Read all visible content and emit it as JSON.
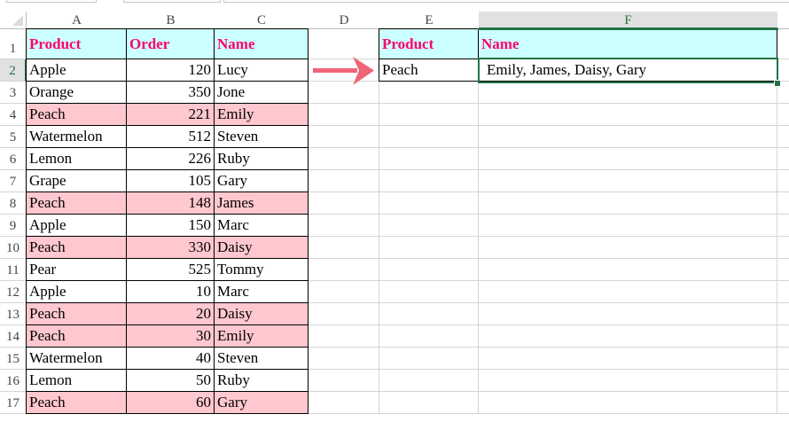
{
  "columns": [
    "A",
    "B",
    "C",
    "D",
    "E",
    "F"
  ],
  "selected_column": "F",
  "selected_row": 2,
  "source_headers": [
    "Product",
    "Order",
    "Name"
  ],
  "source_rows": [
    [
      "Apple",
      120,
      "Lucy",
      false
    ],
    [
      "Orange",
      350,
      "Jone",
      false
    ],
    [
      "Peach",
      221,
      "Emily",
      true
    ],
    [
      "Watermelon",
      512,
      "Steven",
      false
    ],
    [
      "Lemon",
      226,
      "Ruby",
      false
    ],
    [
      "Grape",
      105,
      "Gary",
      false
    ],
    [
      "Peach",
      148,
      "James",
      true
    ],
    [
      "Apple",
      150,
      "Marc",
      false
    ],
    [
      "Peach",
      330,
      "Daisy",
      true
    ],
    [
      "Pear",
      525,
      "Tommy",
      false
    ],
    [
      "Apple",
      10,
      "Marc",
      false
    ],
    [
      "Peach",
      20,
      "Daisy",
      true
    ],
    [
      "Peach",
      30,
      "Emily",
      true
    ],
    [
      "Watermelon",
      40,
      "Steven",
      false
    ],
    [
      "Lemon",
      50,
      "Ruby",
      false
    ],
    [
      "Peach",
      60,
      "Gary",
      true
    ]
  ],
  "result": {
    "headers": [
      "Product",
      "Name"
    ],
    "product": "Peach",
    "names": "Emily, James, Daisy, Gary"
  },
  "colors": {
    "header_bg": "#ccffff",
    "header_text": "#ff0066",
    "highlight": "#ffc7ce",
    "arrow": "#ee6677",
    "selection": "#217346"
  },
  "arrow_icon": "right-arrow"
}
